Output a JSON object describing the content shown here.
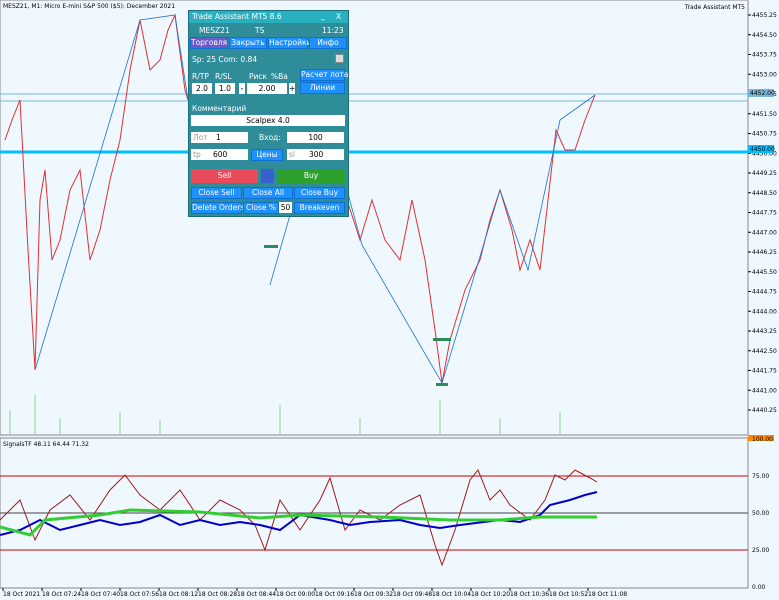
{
  "chart_header": {
    "symbol": "MESZ21, M1:  Micro E-mini S&P 500 ($5): December 2021",
    "expert": "Trade Assistant MT5"
  },
  "price_axis": [
    "4455.25",
    "4454.50",
    "4453.75",
    "4453.00",
    "4452.25",
    "4451.50",
    "4450.75",
    "4450.00",
    "4449.25",
    "4448.50",
    "4447.75",
    "4447.00",
    "4446.25",
    "4445.50",
    "4444.75",
    "4444.00",
    "4443.25",
    "4442.50",
    "4441.75",
    "4441.00",
    "4440.25"
  ],
  "price_markers": [
    "4452.00",
    "4450.00"
  ],
  "indicator": {
    "title": "SignalsTF 48.11 64.44 71.32",
    "axis": [
      "100.00",
      "75.00",
      "50.00",
      "25.00",
      "0.00"
    ]
  },
  "time_axis": [
    "18 Oct 2021",
    "18 Oct 07:24",
    "18 Oct 07:40",
    "18 Oct 07:56",
    "18 Oct 08:12",
    "18 Oct 08:28",
    "18 Oct 08:44",
    "18 Oct 09:00",
    "18 Oct 09:16",
    "18 Oct 09:32",
    "18 Oct 09:48",
    "18 Oct 10:04",
    "18 Oct 10:20",
    "18 Oct 10:36",
    "18 Oct 10:52",
    "18 Oct 11:08"
  ],
  "panel": {
    "title": "Trade Assistant MT5 8.6",
    "minimize": "_",
    "close": "X",
    "symbol": "MESZ21",
    "mode": "TS",
    "time": "11:23",
    "tabs": [
      "Торговля",
      "Закрыть",
      "Настройки",
      "Инфо"
    ],
    "spread": "Sp: 25  Com: 0.84",
    "labels": {
      "rtp": "R/TP",
      "rsl": "R/SL",
      "risk": "Риск",
      "balance": "%Ba",
      "calc": "Расчет лота"
    },
    "rtp": "2.0",
    "rsl": "1.0",
    "minus": "-",
    "risk": "2.00",
    "plus": "+",
    "lines": "Линии",
    "comment_label": "Комментарий",
    "comment": "Scalpex 4.0",
    "lot_label": "Лот",
    "lot": "1",
    "entry_label": "Вход:",
    "entry": "100",
    "tp_label": "tp",
    "tp": "600",
    "prices": "Цены",
    "sl_label": "sl",
    "sl": "300",
    "sell": "Sell",
    "buy": "Buy",
    "close_sell": "Close Sell",
    "close_all": "Close All",
    "close_buy": "Close Buy",
    "delete_orders": "Delete Orders",
    "close_pct": "Close %",
    "close_pct_value": "50",
    "breakeven": "Breakeven"
  }
}
